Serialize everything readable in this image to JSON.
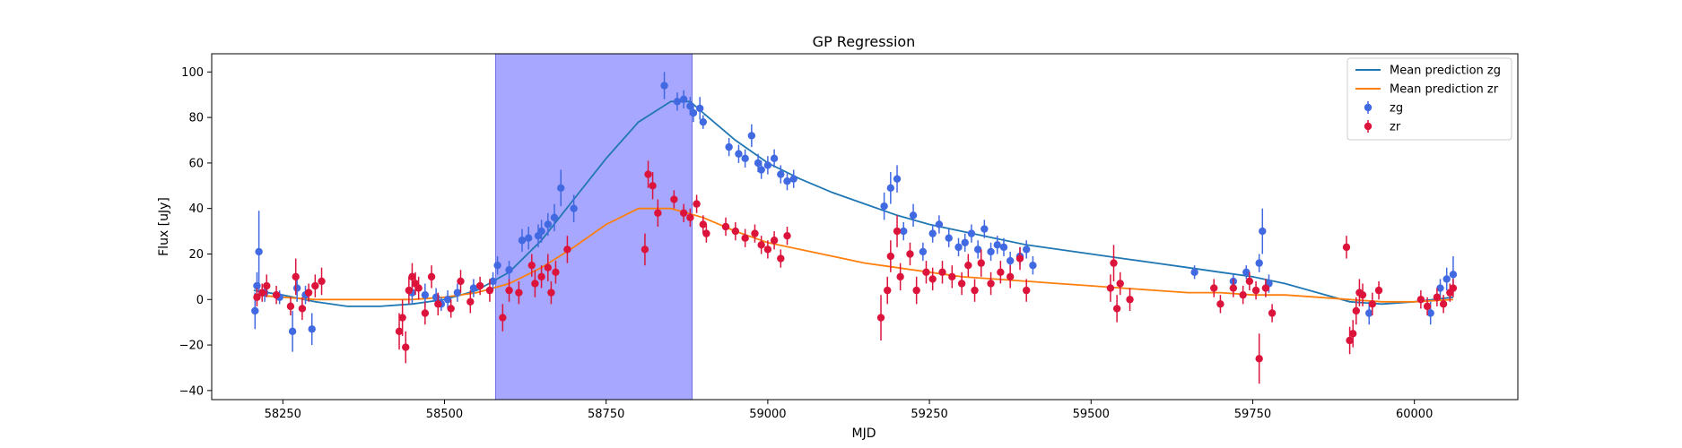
{
  "chart_data": {
    "type": "scatter",
    "title": "GP Regression",
    "xlabel": "MJD",
    "ylabel": "Flux [uJy]",
    "xlim": [
      58140,
      60160
    ],
    "ylim": [
      -44,
      108
    ],
    "xticks": [
      58250,
      58500,
      58750,
      59000,
      59250,
      59500,
      59750,
      60000
    ],
    "yticks": [
      -40,
      -20,
      0,
      20,
      40,
      60,
      80,
      100
    ],
    "grid": false,
    "legend_position": "top-right",
    "shaded_region": {
      "x0": 58579,
      "x1": 58883,
      "color": "#a7a7ff"
    },
    "legend": [
      {
        "label": "Mean prediction zg",
        "kind": "line",
        "color": "#1f77b4"
      },
      {
        "label": "Mean prediction zr",
        "kind": "line",
        "color": "#ff7f0e"
      },
      {
        "label": "zg",
        "kind": "marker",
        "color": "#4169e1"
      },
      {
        "label": "zr",
        "kind": "marker",
        "color": "#dc143c"
      }
    ],
    "lines": [
      {
        "name": "Mean prediction zg",
        "color": "#1f77b4",
        "x": [
          58205,
          58250,
          58300,
          58350,
          58400,
          58450,
          58500,
          58550,
          58600,
          58650,
          58700,
          58750,
          58800,
          58850,
          58880,
          58900,
          58950,
          59000,
          59050,
          59100,
          59150,
          59200,
          59250,
          59300,
          59350,
          59400,
          59450,
          59500,
          59550,
          59600,
          59650,
          59700,
          59750,
          59800,
          59850,
          59900,
          59950,
          60000,
          60060
        ],
        "y": [
          4,
          2,
          -1,
          -3,
          -3,
          -2,
          0,
          4,
          12,
          26,
          44,
          62,
          78,
          87,
          87,
          82,
          70,
          60,
          53,
          47,
          42,
          37,
          33,
          30,
          27,
          24,
          22,
          20,
          18,
          16,
          14,
          12,
          10,
          7,
          3,
          -1,
          -2,
          -1,
          1
        ]
      },
      {
        "name": "Mean prediction zr",
        "color": "#ff7f0e",
        "x": [
          58205,
          58250,
          58300,
          58350,
          58400,
          58450,
          58500,
          58550,
          58600,
          58650,
          58700,
          58750,
          58800,
          58850,
          58900,
          58950,
          59000,
          59050,
          59100,
          59150,
          59200,
          59250,
          59300,
          59350,
          59400,
          59450,
          59500,
          59550,
          59600,
          59650,
          59700,
          59750,
          59800,
          59850,
          59900,
          59950,
          60000,
          60060
        ],
        "y": [
          2,
          1,
          0,
          0,
          0,
          0,
          1,
          3,
          7,
          14,
          23,
          33,
          40,
          40,
          36,
          30,
          25,
          22,
          19,
          16,
          14,
          12,
          10,
          9,
          8,
          7,
          6,
          5,
          4,
          3,
          3,
          2,
          2,
          1,
          0,
          -1,
          -1,
          0
        ]
      }
    ],
    "series": [
      {
        "name": "zg",
        "color": "#4169e1",
        "points": [
          [
            58207,
            -5,
            8
          ],
          [
            58210,
            6,
            6
          ],
          [
            58213,
            21,
            18
          ],
          [
            58222,
            3,
            4
          ],
          [
            58245,
            1,
            3
          ],
          [
            58265,
            -14,
            9
          ],
          [
            58272,
            5,
            6
          ],
          [
            58285,
            2,
            4
          ],
          [
            58295,
            -13,
            7
          ],
          [
            58450,
            3,
            5
          ],
          [
            58470,
            2,
            5
          ],
          [
            58487,
            1,
            4
          ],
          [
            58495,
            -2,
            3
          ],
          [
            58505,
            0,
            4
          ],
          [
            58520,
            3,
            4
          ],
          [
            58545,
            5,
            4
          ],
          [
            58575,
            8,
            4
          ],
          [
            58582,
            15,
            4
          ],
          [
            58600,
            13,
            4
          ],
          [
            58620,
            26,
            5
          ],
          [
            58630,
            27,
            5
          ],
          [
            58645,
            28,
            5
          ],
          [
            58650,
            30,
            5
          ],
          [
            58660,
            33,
            5
          ],
          [
            58670,
            36,
            6
          ],
          [
            58680,
            49,
            8
          ],
          [
            58700,
            40,
            6
          ],
          [
            58840,
            94,
            6
          ],
          [
            58860,
            87,
            4
          ],
          [
            58870,
            88,
            4
          ],
          [
            58880,
            85,
            4
          ],
          [
            58885,
            82,
            4
          ],
          [
            58895,
            84,
            5
          ],
          [
            58900,
            78,
            3
          ],
          [
            58940,
            67,
            4
          ],
          [
            58955,
            64,
            4
          ],
          [
            58965,
            62,
            4
          ],
          [
            58975,
            72,
            5
          ],
          [
            58985,
            60,
            4
          ],
          [
            58990,
            57,
            4
          ],
          [
            59000,
            59,
            4
          ],
          [
            59010,
            62,
            4
          ],
          [
            59020,
            55,
            4
          ],
          [
            59030,
            52,
            4
          ],
          [
            59040,
            53,
            4
          ],
          [
            59180,
            41,
            6
          ],
          [
            59190,
            49,
            7
          ],
          [
            59200,
            53,
            6
          ],
          [
            59210,
            30,
            4
          ],
          [
            59225,
            37,
            5
          ],
          [
            59240,
            21,
            4
          ],
          [
            59255,
            29,
            4
          ],
          [
            59265,
            33,
            4
          ],
          [
            59280,
            27,
            4
          ],
          [
            59295,
            23,
            4
          ],
          [
            59305,
            25,
            4
          ],
          [
            59315,
            29,
            4
          ],
          [
            59325,
            22,
            4
          ],
          [
            59335,
            31,
            4
          ],
          [
            59345,
            21,
            4
          ],
          [
            59355,
            24,
            4
          ],
          [
            59365,
            23,
            4
          ],
          [
            59375,
            17,
            4
          ],
          [
            59390,
            19,
            4
          ],
          [
            59400,
            22,
            4
          ],
          [
            59410,
            15,
            4
          ],
          [
            59660,
            12,
            3
          ],
          [
            59720,
            8,
            3
          ],
          [
            59740,
            12,
            3
          ],
          [
            59760,
            16,
            4
          ],
          [
            59765,
            30,
            10
          ],
          [
            59775,
            7,
            4
          ],
          [
            59930,
            -6,
            5
          ],
          [
            60025,
            -6,
            5
          ],
          [
            60040,
            5,
            4
          ],
          [
            60050,
            9,
            5
          ],
          [
            60060,
            11,
            8
          ]
        ]
      },
      {
        "name": "zr",
        "color": "#dc143c",
        "points": [
          [
            58210,
            1,
            4
          ],
          [
            58218,
            3,
            4
          ],
          [
            58225,
            6,
            5
          ],
          [
            58240,
            2,
            4
          ],
          [
            58262,
            -3,
            4
          ],
          [
            58270,
            10,
            8
          ],
          [
            58280,
            -4,
            5
          ],
          [
            58290,
            3,
            4
          ],
          [
            58300,
            6,
            5
          ],
          [
            58310,
            8,
            6
          ],
          [
            58430,
            -14,
            8
          ],
          [
            58435,
            -8,
            8
          ],
          [
            58440,
            -21,
            7
          ],
          [
            58445,
            4,
            6
          ],
          [
            58450,
            10,
            6
          ],
          [
            58455,
            7,
            5
          ],
          [
            58460,
            5,
            5
          ],
          [
            58470,
            -6,
            5
          ],
          [
            58480,
            10,
            5
          ],
          [
            58490,
            -2,
            5
          ],
          [
            58510,
            -4,
            4
          ],
          [
            58525,
            8,
            5
          ],
          [
            58540,
            -1,
            5
          ],
          [
            58555,
            6,
            4
          ],
          [
            58570,
            4,
            5
          ],
          [
            58590,
            -8,
            6
          ],
          [
            58600,
            4,
            5
          ],
          [
            58615,
            3,
            5
          ],
          [
            58635,
            15,
            5
          ],
          [
            58640,
            7,
            6
          ],
          [
            58650,
            10,
            5
          ],
          [
            58660,
            14,
            6
          ],
          [
            58665,
            3,
            5
          ],
          [
            58672,
            12,
            5
          ],
          [
            58690,
            22,
            6
          ],
          [
            58810,
            22,
            7
          ],
          [
            58815,
            55,
            6
          ],
          [
            58822,
            50,
            6
          ],
          [
            58830,
            38,
            6
          ],
          [
            58855,
            44,
            4
          ],
          [
            58870,
            38,
            4
          ],
          [
            58880,
            36,
            4
          ],
          [
            58890,
            42,
            4
          ],
          [
            58900,
            33,
            4
          ],
          [
            58905,
            29,
            4
          ],
          [
            58935,
            32,
            4
          ],
          [
            58950,
            30,
            4
          ],
          [
            58965,
            27,
            4
          ],
          [
            58980,
            29,
            4
          ],
          [
            58990,
            24,
            4
          ],
          [
            59000,
            22,
            4
          ],
          [
            59010,
            26,
            4
          ],
          [
            59020,
            18,
            4
          ],
          [
            59030,
            28,
            4
          ],
          [
            59175,
            -8,
            10
          ],
          [
            59185,
            4,
            6
          ],
          [
            59190,
            19,
            7
          ],
          [
            59200,
            30,
            7
          ],
          [
            59205,
            10,
            6
          ],
          [
            59220,
            20,
            5
          ],
          [
            59230,
            4,
            6
          ],
          [
            59245,
            12,
            5
          ],
          [
            59255,
            9,
            5
          ],
          [
            59270,
            12,
            5
          ],
          [
            59285,
            10,
            5
          ],
          [
            59300,
            7,
            5
          ],
          [
            59310,
            15,
            5
          ],
          [
            59320,
            4,
            5
          ],
          [
            59330,
            16,
            6
          ],
          [
            59345,
            7,
            5
          ],
          [
            59360,
            12,
            5
          ],
          [
            59375,
            10,
            5
          ],
          [
            59390,
            18,
            5
          ],
          [
            59400,
            4,
            5
          ],
          [
            59530,
            5,
            6
          ],
          [
            59535,
            16,
            8
          ],
          [
            59540,
            -4,
            6
          ],
          [
            59545,
            7,
            5
          ],
          [
            59560,
            0,
            5
          ],
          [
            59690,
            5,
            4
          ],
          [
            59700,
            -2,
            4
          ],
          [
            59720,
            5,
            4
          ],
          [
            59735,
            2,
            4
          ],
          [
            59745,
            8,
            4
          ],
          [
            59755,
            4,
            4
          ],
          [
            59760,
            -26,
            11
          ],
          [
            59770,
            5,
            4
          ],
          [
            59780,
            -6,
            4
          ],
          [
            59895,
            23,
            5
          ],
          [
            59900,
            -18,
            6
          ],
          [
            59905,
            -15,
            6
          ],
          [
            59910,
            -5,
            6
          ],
          [
            59915,
            3,
            6
          ],
          [
            59920,
            2,
            5
          ],
          [
            59935,
            -2,
            5
          ],
          [
            59945,
            4,
            4
          ],
          [
            60010,
            0,
            4
          ],
          [
            60020,
            -3,
            4
          ],
          [
            60035,
            1,
            4
          ],
          [
            60045,
            -2,
            4
          ],
          [
            60055,
            3,
            4
          ],
          [
            60060,
            5,
            4
          ]
        ]
      }
    ]
  }
}
